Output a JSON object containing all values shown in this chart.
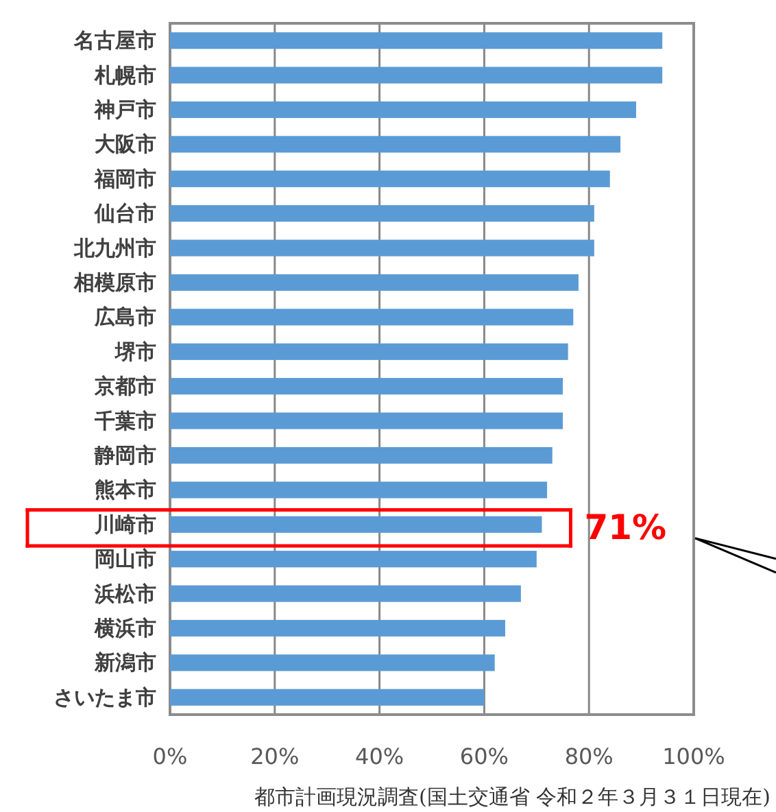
{
  "chart_data": {
    "type": "bar",
    "orientation": "horizontal",
    "categories": [
      "名古屋市",
      "札幌市",
      "神戸市",
      "大阪市",
      "福岡市",
      "仙台市",
      "北九州市",
      "相模原市",
      "広島市",
      "堺市",
      "京都市",
      "千葉市",
      "静岡市",
      "熊本市",
      "川崎市",
      "岡山市",
      "浜松市",
      "横浜市",
      "新潟市",
      "さいたま市"
    ],
    "values": [
      94,
      94,
      89,
      86,
      84,
      81,
      81,
      78,
      77,
      76,
      75,
      75,
      73,
      72,
      71,
      70,
      67,
      64,
      62,
      60
    ],
    "color": "#5b9bd5",
    "xlim": [
      0,
      100
    ],
    "xticks": [
      {
        "value": 0,
        "label": "0%"
      },
      {
        "value": 20,
        "label": "20%"
      },
      {
        "value": 40,
        "label": "40%"
      },
      {
        "value": 60,
        "label": "60%"
      },
      {
        "value": 80,
        "label": "80%"
      },
      {
        "value": 100,
        "label": "100%"
      }
    ],
    "grid": "x",
    "annotations": [
      {
        "text": "71%",
        "x": 71,
        "y": "川崎市"
      },
      "都市計画現況調査(国土交通省 令和２年３月３１日現在)"
    ]
  }
}
